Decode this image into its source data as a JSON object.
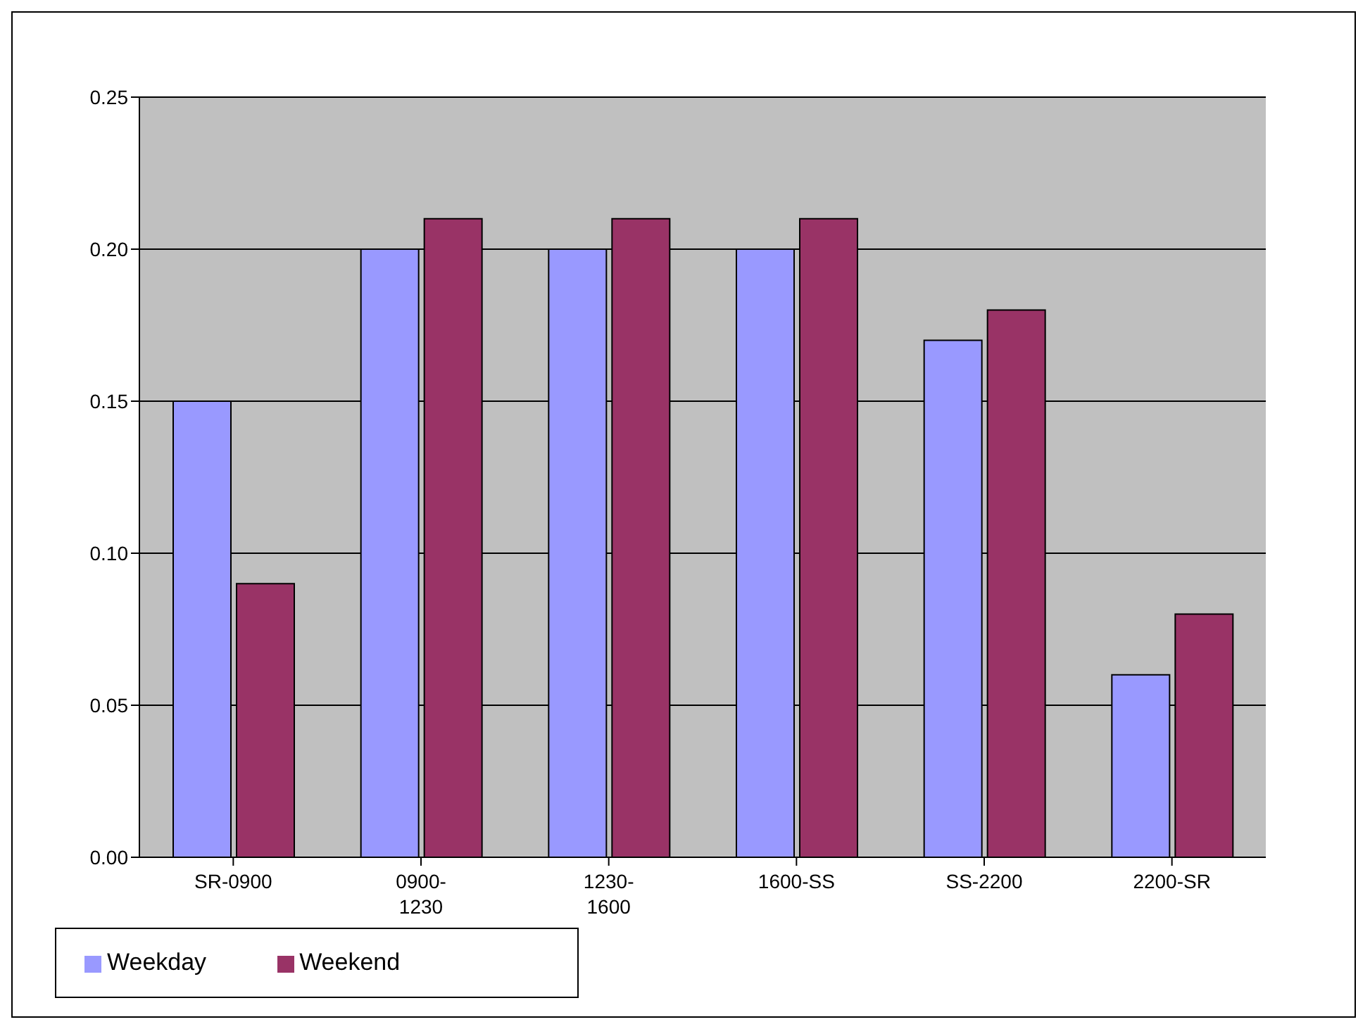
{
  "chart_data": {
    "type": "bar",
    "categories": [
      "SR-0900",
      "0900-\n1230",
      "1230-\n1600",
      "1600-SS",
      "SS-2200",
      "2200-SR"
    ],
    "series": [
      {
        "name": "Weekday",
        "color": "#9999ff",
        "values": [
          0.15,
          0.2,
          0.2,
          0.2,
          0.17,
          0.06
        ]
      },
      {
        "name": "Weekend",
        "color": "#993366",
        "values": [
          0.09,
          0.21,
          0.21,
          0.21,
          0.18,
          0.08
        ]
      }
    ],
    "ylim": [
      0,
      0.25
    ],
    "yticks": [
      {
        "value": 0,
        "label": "0.00"
      },
      {
        "value": 0.05,
        "label": "0.05"
      },
      {
        "value": 0.1,
        "label": "0.10"
      },
      {
        "value": 0.15,
        "label": "0.15"
      },
      {
        "value": 0.2,
        "label": "0.20"
      },
      {
        "value": 0.25,
        "label": "0.25"
      }
    ],
    "grid": "y",
    "legend": "bottom left"
  }
}
